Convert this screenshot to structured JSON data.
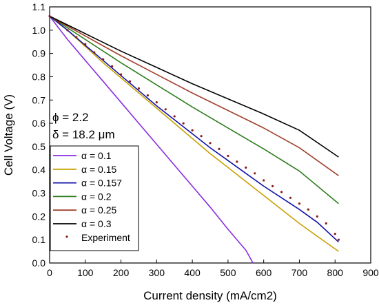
{
  "chart_data": {
    "type": "line",
    "xlabel": "Current density (mA/cm2)",
    "ylabel": "Cell Voltage (V)",
    "xlim": [
      0,
      900
    ],
    "ylim": [
      0.0,
      1.1
    ],
    "xticks": [
      "0",
      "100",
      "200",
      "300",
      "400",
      "500",
      "600",
      "700",
      "800",
      "900"
    ],
    "yticks": [
      "0.0",
      "0.1",
      "0.2",
      "0.3",
      "0.4",
      "0.5",
      "0.6",
      "0.7",
      "0.8",
      "0.9",
      "1.0",
      "1.1"
    ],
    "grid": false,
    "legend_position": "bottom-left",
    "annotations": [
      "ϕ = 2.2",
      "δ = 18.2 μm"
    ],
    "series": [
      {
        "name": "α = 0.1",
        "color": "#8A2BE2",
        "style": "line",
        "x": [
          0,
          50,
          100,
          150,
          200,
          250,
          300,
          350,
          400,
          450,
          500,
          550,
          570
        ],
        "y": [
          1.06,
          0.96,
          0.87,
          0.78,
          0.69,
          0.6,
          0.51,
          0.42,
          0.33,
          0.24,
          0.145,
          0.055,
          0.0
        ]
      },
      {
        "name": "α = 0.15",
        "color": "#C8A000",
        "style": "line",
        "x": [
          0,
          50,
          100,
          150,
          200,
          250,
          300,
          350,
          400,
          450,
          500,
          550,
          600,
          650,
          700,
          750,
          810
        ],
        "y": [
          1.06,
          1.0,
          0.93,
          0.86,
          0.795,
          0.73,
          0.665,
          0.6,
          0.535,
          0.47,
          0.41,
          0.35,
          0.29,
          0.23,
          0.17,
          0.115,
          0.05
        ]
      },
      {
        "name": "α = 0.157",
        "color": "#1010A8",
        "style": "line",
        "x": [
          0,
          50,
          100,
          150,
          200,
          250,
          300,
          350,
          400,
          450,
          500,
          550,
          600,
          650,
          700,
          750,
          810
        ],
        "y": [
          1.06,
          1.0,
          0.935,
          0.87,
          0.805,
          0.74,
          0.675,
          0.615,
          0.555,
          0.495,
          0.44,
          0.385,
          0.33,
          0.28,
          0.23,
          0.175,
          0.09
        ]
      },
      {
        "name": "α = 0.2",
        "color": "#2E7D1E",
        "style": "line",
        "x": [
          0,
          100,
          200,
          300,
          400,
          500,
          600,
          700,
          810
        ],
        "y": [
          1.06,
          0.96,
          0.86,
          0.765,
          0.67,
          0.58,
          0.49,
          0.395,
          0.255
        ]
      },
      {
        "name": "α = 0.25",
        "color": "#A0402A",
        "style": "line",
        "x": [
          0,
          100,
          200,
          300,
          400,
          500,
          600,
          700,
          810
        ],
        "y": [
          1.06,
          0.975,
          0.89,
          0.81,
          0.73,
          0.655,
          0.58,
          0.495,
          0.375
        ]
      },
      {
        "name": "α = 0.3",
        "color": "#000000",
        "style": "line",
        "x": [
          0,
          100,
          200,
          300,
          400,
          500,
          600,
          700,
          810
        ],
        "y": [
          1.06,
          0.985,
          0.91,
          0.84,
          0.77,
          0.705,
          0.64,
          0.57,
          0.455
        ]
      },
      {
        "name": "Experiment",
        "color": "#8B1A1A",
        "style": "dots",
        "x": [
          0,
          25,
          50,
          75,
          100,
          125,
          150,
          175,
          200,
          225,
          250,
          275,
          300,
          325,
          350,
          375,
          400,
          425,
          450,
          475,
          500,
          525,
          550,
          575,
          600,
          625,
          650,
          675,
          700,
          725,
          750,
          775,
          800,
          810
        ],
        "y": [
          1.06,
          1.035,
          1.0,
          0.97,
          0.94,
          0.905,
          0.875,
          0.845,
          0.81,
          0.78,
          0.75,
          0.72,
          0.69,
          0.66,
          0.63,
          0.6,
          0.57,
          0.545,
          0.515,
          0.49,
          0.46,
          0.435,
          0.41,
          0.385,
          0.355,
          0.33,
          0.305,
          0.28,
          0.255,
          0.23,
          0.2,
          0.17,
          0.125,
          0.1
        ]
      }
    ]
  }
}
